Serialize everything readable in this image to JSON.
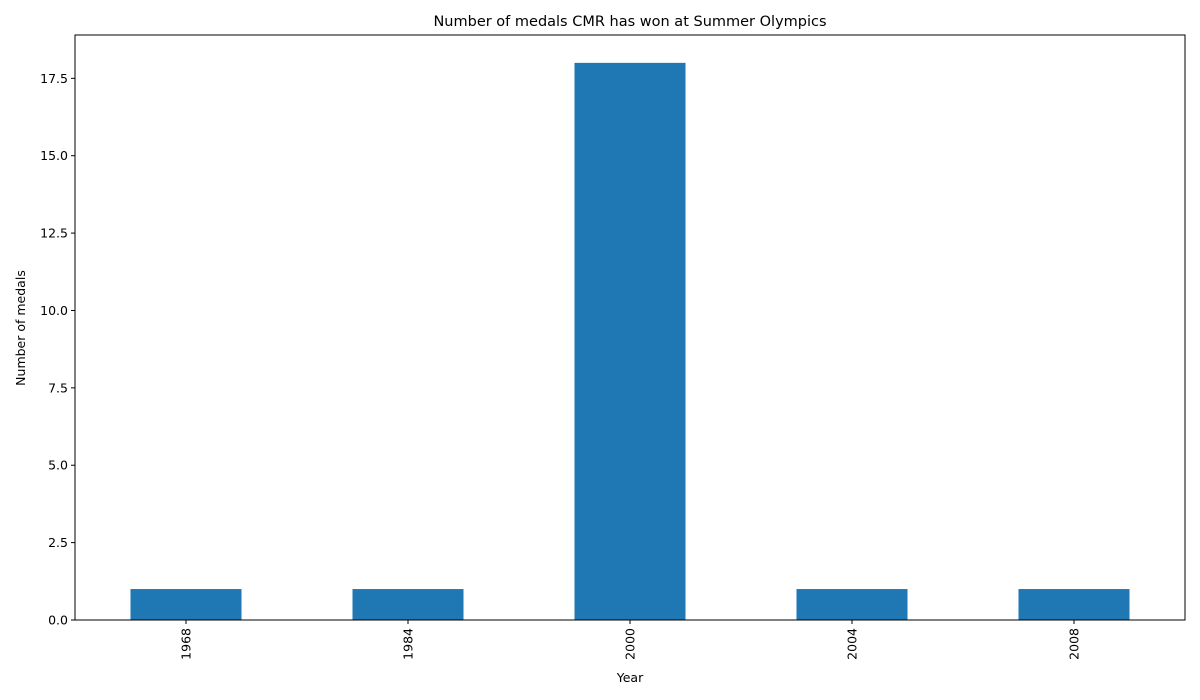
{
  "chart_data": {
    "type": "bar",
    "title": "Number of medals CMR has won at Summer Olympics",
    "xlabel": "Year",
    "ylabel": "Number of medals",
    "categories": [
      "1968",
      "1984",
      "2000",
      "2004",
      "2008"
    ],
    "values": [
      1,
      1,
      18,
      1,
      1
    ],
    "ylim": [
      0,
      18.9
    ],
    "yticks": [
      0.0,
      2.5,
      5.0,
      7.5,
      10.0,
      12.5,
      15.0,
      17.5
    ],
    "ytick_labels": [
      "0.0",
      "2.5",
      "5.0",
      "7.5",
      "10.0",
      "12.5",
      "15.0",
      "17.5"
    ],
    "x_tick_rotation": "vertical",
    "grid": false,
    "legend": "none",
    "bar_color": "#1f77b4"
  }
}
